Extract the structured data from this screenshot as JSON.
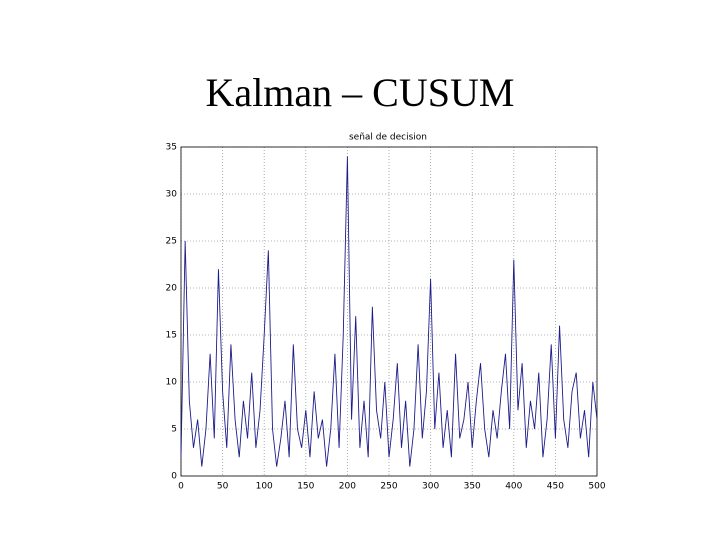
{
  "slide_title": "Kalman – CUSUM",
  "chart_data": {
    "type": "line",
    "title": "señal de decision",
    "color": "#1c1c8a",
    "grid": true,
    "x": [
      0,
      5,
      10,
      15,
      20,
      25,
      30,
      35,
      40,
      45,
      50,
      55,
      60,
      65,
      70,
      75,
      80,
      85,
      90,
      95,
      100,
      105,
      110,
      115,
      120,
      125,
      130,
      135,
      140,
      145,
      150,
      155,
      160,
      165,
      170,
      175,
      180,
      185,
      190,
      195,
      200,
      205,
      210,
      215,
      220,
      225,
      230,
      235,
      240,
      245,
      250,
      255,
      260,
      265,
      270,
      275,
      280,
      285,
      290,
      295,
      300,
      305,
      310,
      315,
      320,
      325,
      330,
      335,
      340,
      345,
      350,
      355,
      360,
      365,
      370,
      375,
      380,
      385,
      390,
      395,
      400,
      405,
      410,
      415,
      420,
      425,
      430,
      435,
      440,
      445,
      450,
      455,
      460,
      465,
      470,
      475,
      480,
      485,
      490,
      495,
      500
    ],
    "values": [
      2,
      25,
      8,
      3,
      6,
      1,
      5,
      13,
      4,
      22,
      9,
      3,
      14,
      6,
      2,
      8,
      4,
      11,
      3,
      7,
      15,
      24,
      5,
      1,
      4,
      8,
      2,
      14,
      5,
      3,
      7,
      2,
      9,
      4,
      6,
      1,
      5,
      13,
      3,
      15,
      34,
      6,
      17,
      3,
      8,
      2,
      18,
      7,
      4,
      10,
      2,
      6,
      12,
      3,
      8,
      1,
      5,
      14,
      4,
      9,
      21,
      5,
      11,
      3,
      7,
      2,
      13,
      4,
      6,
      10,
      3,
      8,
      12,
      5,
      2,
      7,
      4,
      9,
      13,
      5,
      23,
      7,
      12,
      3,
      8,
      5,
      11,
      2,
      6,
      14,
      4,
      16,
      6,
      3,
      9,
      11,
      4,
      7,
      2,
      10,
      6
    ],
    "xlim": [
      0,
      500
    ],
    "ylim": [
      0,
      35
    ],
    "xticks": [
      0,
      50,
      100,
      150,
      200,
      250,
      300,
      350,
      400,
      450,
      500
    ],
    "yticks": [
      0,
      5,
      10,
      15,
      20,
      25,
      30,
      35
    ]
  }
}
